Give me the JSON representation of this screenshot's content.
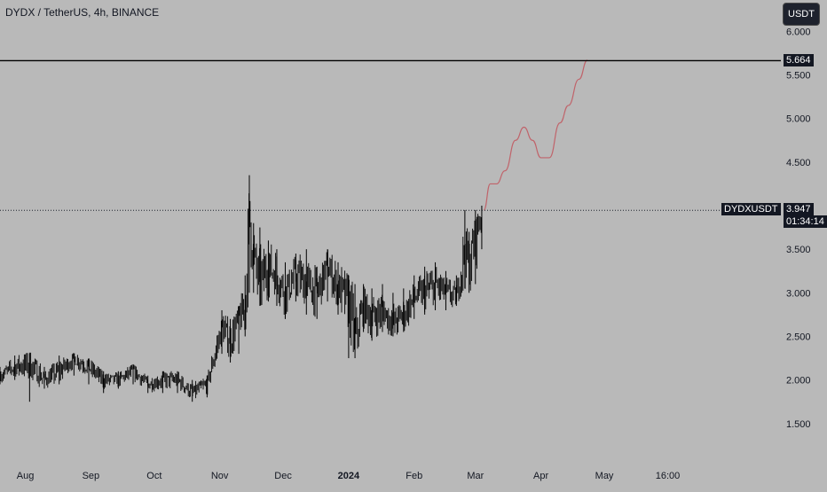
{
  "header": {
    "title": "DYDX / TetherUS, 4h, BINANCE",
    "currency_button": "USDT"
  },
  "colors": {
    "background": "#b9b9b9",
    "candles": "#000000",
    "projection": "#c0636a",
    "resistance_line": "#000000"
  },
  "chart_data": {
    "type": "line",
    "symbol": "DYDXUSDT",
    "ylim": [
      1.05,
      6.36
    ],
    "y_ticks": [
      "6.000",
      "5.500",
      "5.000",
      "4.500",
      "3.500",
      "3.000",
      "2.500",
      "2.000",
      "1.500"
    ],
    "x_ticks": [
      "Aug",
      "Sep",
      "Oct",
      "Nov",
      "Dec",
      "2024",
      "Feb",
      "Mar",
      "Apr",
      "May",
      "16:00"
    ],
    "grid": false,
    "resistance": {
      "label": "5.664",
      "value": 5.664
    },
    "last_price": {
      "symbol": "DYDXUSDT",
      "value": "3.947",
      "countdown": "01:34:14"
    },
    "series": [
      {
        "style": "candles",
        "x": [
          "2023-07-20",
          "2023-07-27",
          "2023-08-03",
          "2023-08-10",
          "2023-08-17",
          "2023-08-24",
          "2023-08-31",
          "2023-09-07",
          "2023-09-14",
          "2023-09-21",
          "2023-09-28",
          "2023-10-05",
          "2023-10-12",
          "2023-10-19",
          "2023-10-26",
          "2023-11-02",
          "2023-11-06",
          "2023-11-10",
          "2023-11-13",
          "2023-11-15",
          "2023-11-17",
          "2023-11-20",
          "2023-11-24",
          "2023-11-28",
          "2023-12-02",
          "2023-12-07",
          "2023-12-12",
          "2023-12-17",
          "2023-12-22",
          "2023-12-27",
          "2024-01-01",
          "2024-01-04",
          "2024-01-08",
          "2024-01-12",
          "2024-01-17",
          "2024-01-22",
          "2024-01-27",
          "2024-02-01",
          "2024-02-06",
          "2024-02-11",
          "2024-02-16",
          "2024-02-21",
          "2024-02-25",
          "2024-02-27",
          "2024-03-01",
          "2024-03-04"
        ],
        "y": [
          2.05,
          2.15,
          2.2,
          2.0,
          2.1,
          2.25,
          2.15,
          2.0,
          2.0,
          2.1,
          1.95,
          2.0,
          2.0,
          1.85,
          1.95,
          2.6,
          2.45,
          2.7,
          2.8,
          3.9,
          3.4,
          3.1,
          3.3,
          3.2,
          3.0,
          3.2,
          3.1,
          3.0,
          3.3,
          3.05,
          2.9,
          2.45,
          2.85,
          2.7,
          2.8,
          2.65,
          2.75,
          2.95,
          3.0,
          3.1,
          3.0,
          2.95,
          3.5,
          3.3,
          3.65,
          3.95
        ],
        "low": [
          1.95,
          2.0,
          1.75,
          1.9,
          1.95,
          2.05,
          1.95,
          1.85,
          1.9,
          1.95,
          1.85,
          1.85,
          1.85,
          1.75,
          1.8,
          2.3,
          2.2,
          2.3,
          2.5,
          3.0,
          3.0,
          2.85,
          2.9,
          2.85,
          2.7,
          2.9,
          2.75,
          2.7,
          2.9,
          2.75,
          2.25,
          2.25,
          2.55,
          2.45,
          2.55,
          2.5,
          2.55,
          2.7,
          2.75,
          2.8,
          2.8,
          2.85,
          3.05,
          3.0,
          3.1,
          3.5
        ],
        "high": [
          2.15,
          2.28,
          2.3,
          2.15,
          2.28,
          2.3,
          2.25,
          2.1,
          2.1,
          2.18,
          2.05,
          2.1,
          2.1,
          2.0,
          2.05,
          2.8,
          2.7,
          2.85,
          3.2,
          4.35,
          3.8,
          3.75,
          3.6,
          3.5,
          3.35,
          3.45,
          3.5,
          3.3,
          3.5,
          3.35,
          3.2,
          3.1,
          3.1,
          3.05,
          3.1,
          3.0,
          3.05,
          3.2,
          3.3,
          3.35,
          3.25,
          3.2,
          3.95,
          3.7,
          3.95,
          4.0
        ]
      },
      {
        "style": "projection",
        "x": [
          "2024-03-05",
          "2024-03-08",
          "2024-03-11",
          "2024-03-15",
          "2024-03-20",
          "2024-03-24",
          "2024-03-28",
          "2024-04-01",
          "2024-04-05",
          "2024-04-10",
          "2024-04-14",
          "2024-04-19",
          "2024-04-23"
        ],
        "y": [
          3.95,
          4.25,
          4.25,
          4.4,
          4.75,
          4.9,
          4.75,
          4.55,
          4.55,
          4.95,
          5.15,
          5.45,
          5.67
        ]
      }
    ]
  }
}
